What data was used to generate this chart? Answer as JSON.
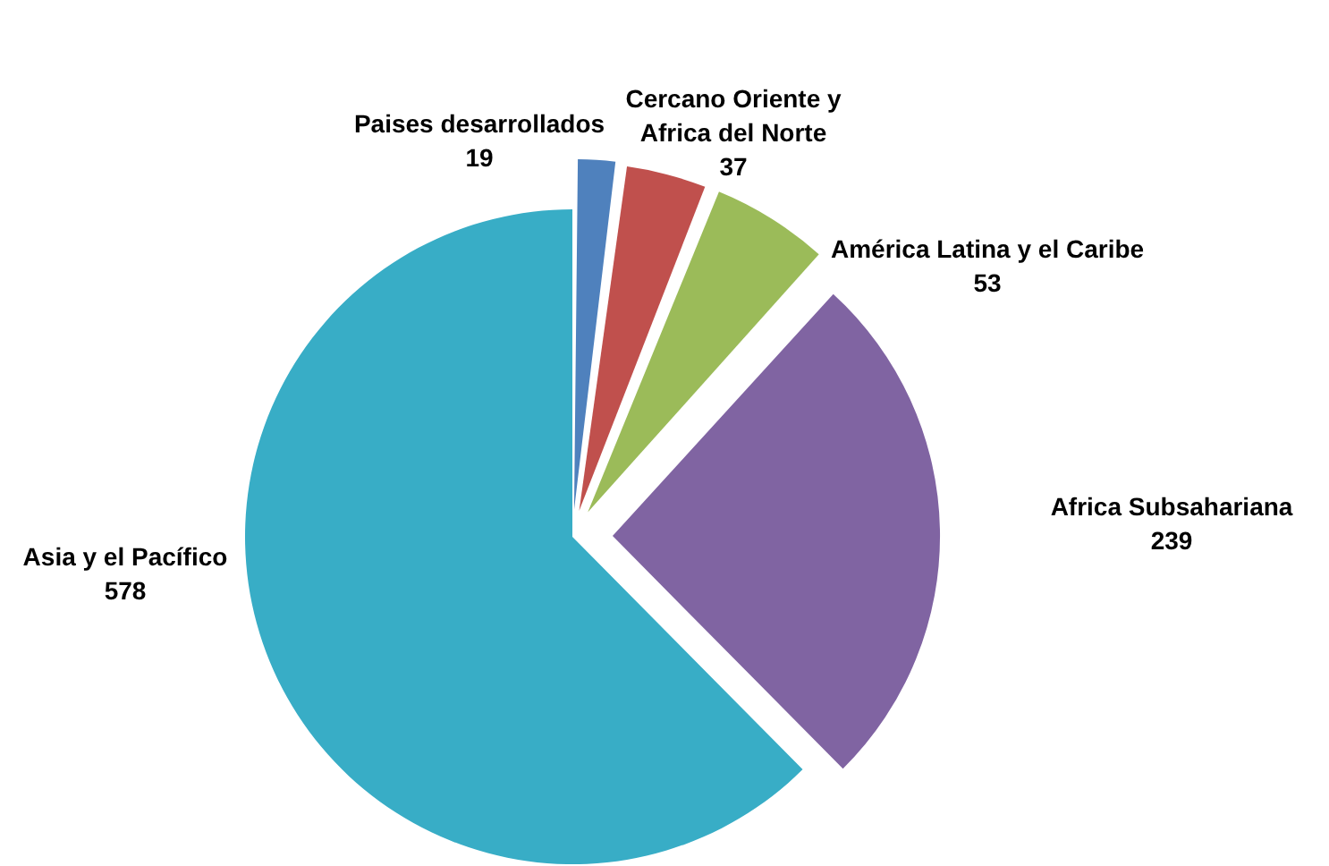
{
  "chart_data": {
    "type": "pie",
    "categories": [
      "Paises desarrollados",
      "Cercano Oriente y Africa del Norte",
      "América Latina y el Caribe",
      "Africa Subsahariana",
      "Asia y el Pacífico"
    ],
    "values": [
      19,
      37,
      53,
      239,
      578
    ],
    "colors": [
      "#4f81bd",
      "#c0504d",
      "#9bbb59",
      "#8064a2",
      "#38adc6"
    ],
    "data_labels": true,
    "legend": false
  }
}
